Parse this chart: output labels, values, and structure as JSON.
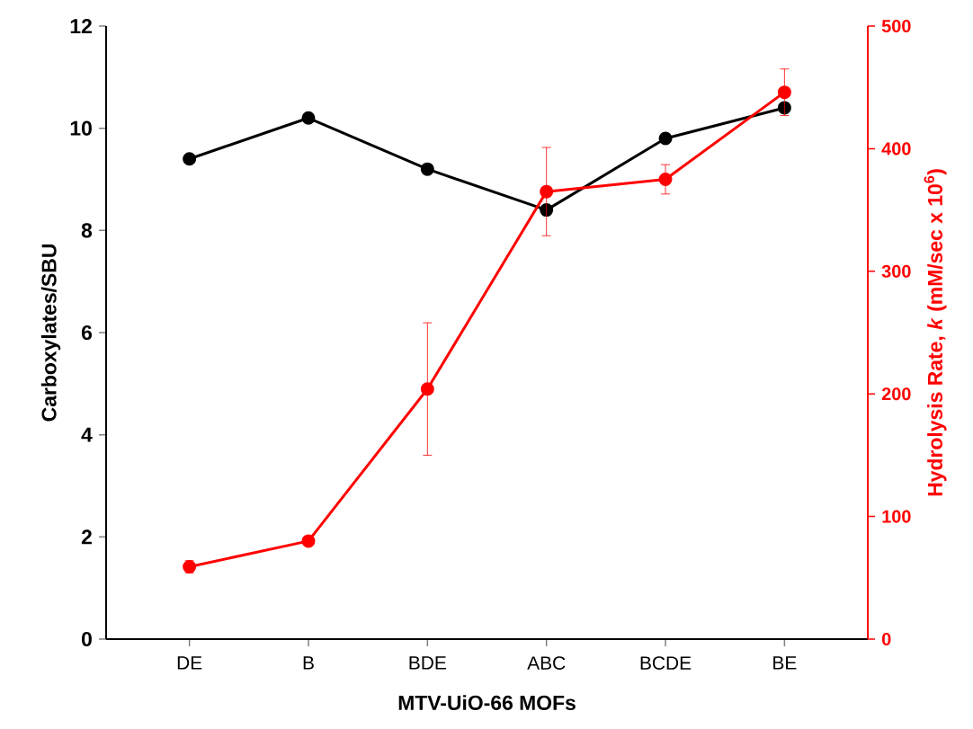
{
  "chart_data": {
    "type": "line",
    "xlabel": "MTV-UiO-66 MOFs",
    "ylabel": "Carboxylates/SBU",
    "y2label": "Hydrolysis Rate, *k* (mM/sec x 10$^{6}$)",
    "categories": [
      "DE",
      "B",
      "BDE",
      "ABC",
      "BCDE",
      "BE"
    ],
    "series": [
      {
        "color": "#000000",
        "values": [
          9.4,
          10.2,
          9.2,
          8.4,
          9.8,
          10.4
        ]
      },
      {
        "color": "#ff0000",
        "axis": "y2",
        "values": [
          59,
          80,
          204,
          365,
          375,
          446
        ],
        "errors": [
          5,
          2,
          54,
          36,
          12,
          19
        ]
      }
    ],
    "ylim": [
      0,
      12
    ],
    "yticks": [
      0,
      2,
      4,
      6,
      8,
      10,
      12
    ],
    "y2lim": [
      0,
      500
    ],
    "y2ticks": [
      0,
      100,
      200,
      300,
      400,
      500
    ],
    "marker": "circle",
    "line_style": "solid",
    "grid": false
  }
}
